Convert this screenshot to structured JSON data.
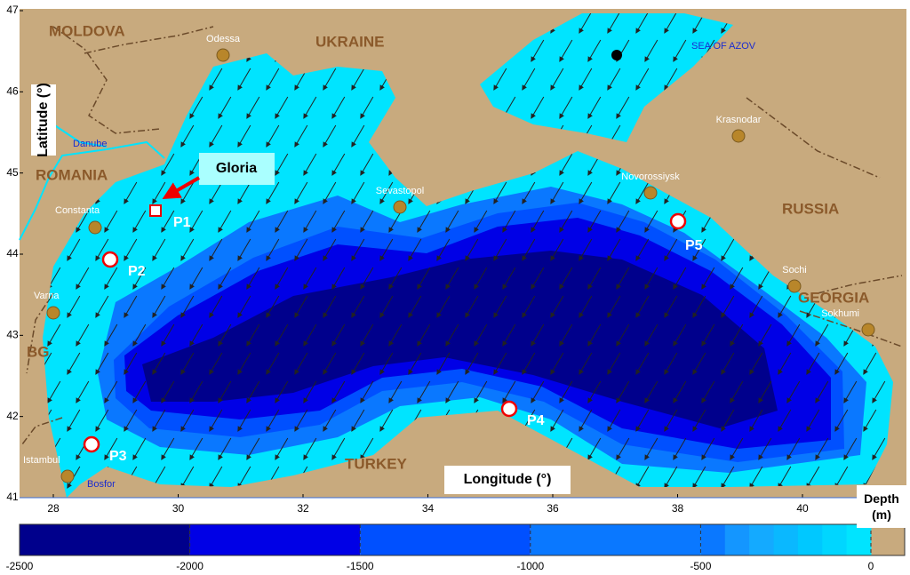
{
  "axes": {
    "y_label": "Latitude (°)",
    "x_label": "Longitude (°)",
    "yticks": [
      41,
      42,
      43,
      44,
      45,
      46,
      47
    ],
    "xticks": [
      28,
      30,
      32,
      34,
      36,
      38,
      40
    ]
  },
  "labels": {
    "countries": [
      "MOLDOVA",
      "UKRAINE",
      "ROMANIA",
      "RUSSIA",
      "GEORGIA",
      "BG",
      "TURKEY"
    ],
    "sea": "SEA OF AZOV",
    "cities": [
      "Odessa",
      "Krasnodar",
      "Constanta",
      "Sevastopol",
      "Novorossiysk",
      "Varna",
      "Sochi",
      "Sokhumi",
      "Istambul"
    ],
    "river": "Danube",
    "strait": "Bosfor",
    "platform": "Gloria",
    "points": [
      "P1",
      "P2",
      "P3",
      "P4",
      "P5"
    ]
  },
  "colorbar": {
    "title": "Depth (m)",
    "ticks": [
      -2500,
      -2000,
      -1500,
      -1000,
      -500,
      0
    ],
    "colors": [
      "#00008c",
      "#0000e6",
      "#0050ff",
      "#0a78ff",
      "#00e4ff"
    ],
    "land": "#c8aa7e"
  }
}
